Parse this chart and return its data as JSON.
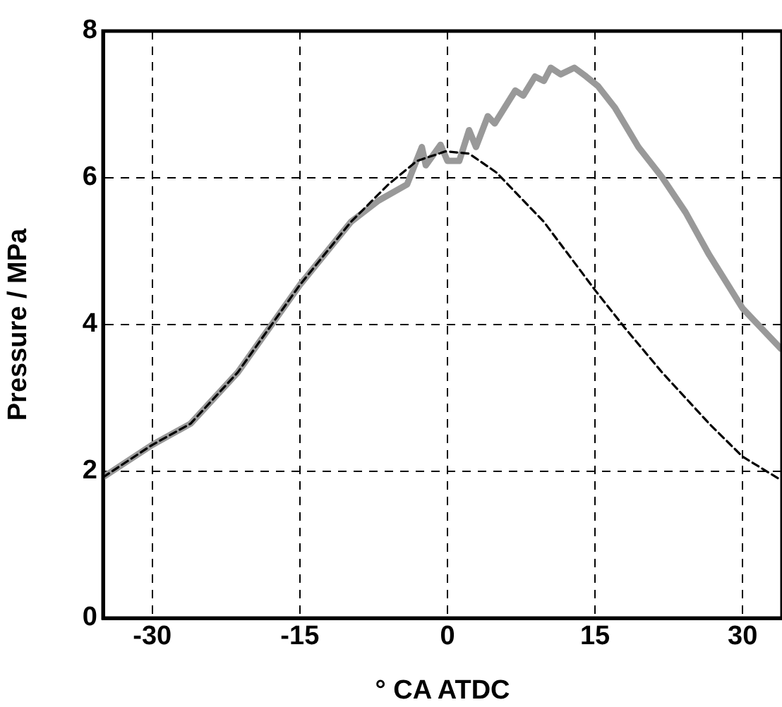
{
  "chart_data": {
    "type": "line",
    "xlabel": "° CA ATDC",
    "ylabel": "Pressure / MPa",
    "xlim": [
      -35,
      34
    ],
    "ylim": [
      0,
      8
    ],
    "xticks": [
      -30,
      -15,
      0,
      15,
      30
    ],
    "yticks": [
      0,
      2,
      4,
      6,
      8
    ],
    "grid": true,
    "legend": false,
    "marker": "none",
    "series": [
      {
        "color": "#999999",
        "line_style": "solid",
        "x": [
          -35,
          -30,
          -26.1,
          -21.3,
          -15,
          -9.8,
          -7,
          -4.1,
          -2.6,
          -2.2,
          -0.7,
          0,
          1.2,
          2.2,
          2.9,
          4.1,
          4.8,
          6.9,
          7.7,
          8.9,
          9.8,
          10.5,
          11.5,
          12.9,
          14.1,
          15.3,
          17,
          19.4,
          21.8,
          24.2,
          26.6,
          30,
          33.9
        ],
        "values": [
          1.92,
          2.36,
          2.65,
          3.35,
          4.54,
          5.4,
          5.69,
          5.91,
          6.42,
          6.17,
          6.45,
          6.23,
          6.23,
          6.65,
          6.42,
          6.84,
          6.74,
          7.19,
          7.12,
          7.38,
          7.32,
          7.5,
          7.41,
          7.5,
          7.38,
          7.25,
          6.96,
          6.42,
          6.01,
          5.53,
          4.95,
          4.22,
          3.67
        ]
      },
      {
        "color": "#000000",
        "line_style": "dashed",
        "x": [
          -35,
          -30,
          -26.1,
          -21.3,
          -15,
          -9.8,
          -6,
          -3.1,
          -0.2,
          2.2,
          5,
          9.8,
          15,
          18,
          21.8,
          26.6,
          30,
          33.9
        ],
        "values": [
          1.92,
          2.36,
          2.65,
          3.35,
          4.54,
          5.4,
          5.91,
          6.23,
          6.36,
          6.33,
          6.07,
          5.4,
          4.47,
          3.96,
          3.35,
          2.65,
          2.2,
          1.88
        ]
      }
    ]
  }
}
